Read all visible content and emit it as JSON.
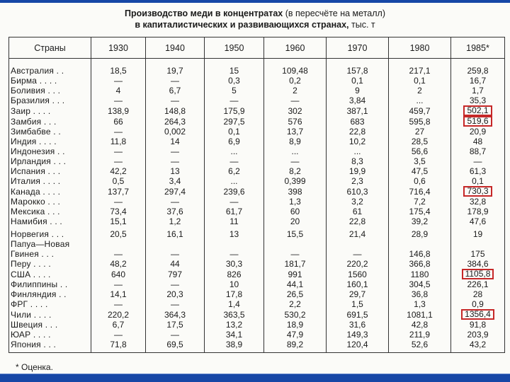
{
  "header": {
    "title": "Производство меди в концентратах",
    "title_note": "(в пересчёте на металл)",
    "subtitle": "в капиталистических и развивающихся странах,",
    "unit": "тыс. т"
  },
  "table": {
    "columns": [
      "Страны",
      "1930",
      "1940",
      "1950",
      "1960",
      "1970",
      "1980",
      "1985*"
    ],
    "rows": [
      [
        "Австралия . .",
        "18,5",
        "19,7",
        "15",
        "109,48",
        "157,8",
        "217,1",
        "259,8"
      ],
      [
        "Бирма . . . .",
        "—",
        "—",
        "0,3",
        "0,2",
        "0,1",
        "0,1",
        "16,7"
      ],
      [
        "Боливия . . .",
        "4",
        "6,7",
        "5",
        "2",
        "9",
        "2",
        "1,7"
      ],
      [
        "Бразилия . . .",
        "—",
        "—",
        "—",
        "—",
        "3,84",
        "...",
        "35,3"
      ],
      [
        "Заир . . . .",
        "138,9",
        "148,8",
        "175,9",
        "302",
        "387,1",
        "459,7",
        "502,1"
      ],
      [
        "Замбия . . .",
        "66",
        "264,3",
        "297,5",
        "576",
        "683",
        "595,8",
        "519,6"
      ],
      [
        "Зимбабве . .",
        "—",
        "0,002",
        "0,1",
        "13,7",
        "22,8",
        "27",
        "20,9"
      ],
      [
        "Индия . . . .",
        "11,8",
        "14",
        "6,9",
        "8,9",
        "10,2",
        "28,5",
        "48"
      ],
      [
        "Индонезия . .",
        "—",
        "—",
        "...",
        "...",
        "...",
        "56,6",
        "88,7"
      ],
      [
        "Ирландия . . .",
        "—",
        "—",
        "—",
        "—",
        "8,3",
        "3,5",
        "—"
      ],
      [
        "Испания . . .",
        "42,2",
        "13",
        "6,2",
        "8,2",
        "19,9",
        "47,5",
        "61,3"
      ],
      [
        "Италия . . . .",
        "0,5",
        "3,4",
        "...",
        "0,399",
        "2,3",
        "0,6",
        "0,1"
      ],
      [
        "Канада . . . .",
        "137,7",
        "297,4",
        "239,6",
        "398",
        "610,3",
        "716,4",
        "730,3"
      ],
      [
        "Марокко . . .",
        "—",
        "—",
        "—",
        "1,3",
        "3,2",
        "7,2",
        "32,8"
      ],
      [
        "Мексика . . .",
        "73,4",
        "37,6",
        "61,7",
        "60",
        "61",
        "175,4",
        "178,9"
      ],
      [
        "Намибия . . .",
        "15,1",
        "1,2",
        "11",
        "20",
        "22,8",
        "39,2",
        "47,6"
      ],
      [
        "Норвегия . . .",
        "20,5",
        "16,1",
        "13",
        "15,5",
        "21,4",
        "28,9",
        "19"
      ],
      [
        "Папуа—Новая\n Гвинея . . .",
        "—",
        "—",
        "—",
        "—",
        "—",
        "146,8",
        "175"
      ],
      [
        "Перу . . . .",
        "48,2",
        "44",
        "30,3",
        "181,7",
        "220,2",
        "366,8",
        "384,6"
      ],
      [
        "США . . . .",
        "640",
        "797",
        "826",
        "991",
        "1560",
        "1180",
        "1105,8"
      ],
      [
        "Филиппины . .",
        "—",
        "—",
        "10",
        "44,1",
        "160,1",
        "304,5",
        "226,1"
      ],
      [
        "Финляндия . .",
        "14,1",
        "20,3",
        "17,8",
        "26,5",
        "29,7",
        "36,8",
        "28"
      ],
      [
        "ФРГ . . . .",
        "—",
        "—",
        "1,4",
        "2,2",
        "1,5",
        "1,3",
        "0,9"
      ],
      [
        "Чили . . . .",
        "220,2",
        "364,3",
        "363,5",
        "530,2",
        "691,5",
        "1081,1",
        "1356,4"
      ],
      [
        "Швеция . . .",
        "6,7",
        "17,5",
        "13,2",
        "18,9",
        "31,6",
        "42,8",
        "91,8"
      ],
      [
        "ЮАР . . . .",
        "—",
        "—",
        "34,1",
        "47,9",
        "149,3",
        "211,9",
        "203,9"
      ],
      [
        "Япония . . .",
        "71,8",
        "69,5",
        "38,9",
        "89,2",
        "120,4",
        "52,6",
        "43,2"
      ]
    ]
  },
  "footnote": "* Оценка."
}
